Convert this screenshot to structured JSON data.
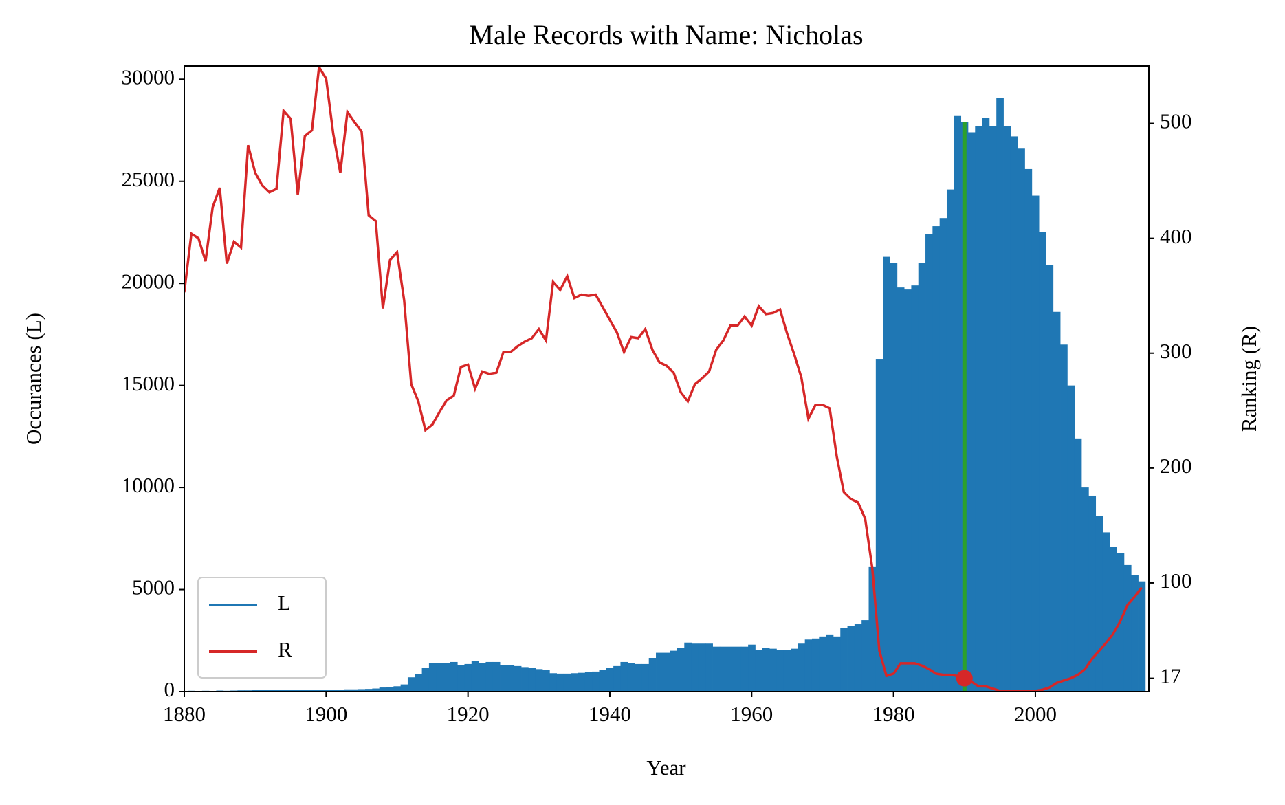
{
  "chart_data": {
    "type": "bar",
    "title": "Male Records with Name: Nicholas",
    "xlabel": "Year",
    "ylabel": "Occurances (L)",
    "y2label": "Ranking (R)",
    "x": [
      1880,
      1881,
      1882,
      1883,
      1884,
      1885,
      1886,
      1887,
      1888,
      1889,
      1890,
      1891,
      1892,
      1893,
      1894,
      1895,
      1896,
      1897,
      1898,
      1899,
      1900,
      1901,
      1902,
      1903,
      1904,
      1905,
      1906,
      1907,
      1908,
      1909,
      1910,
      1911,
      1912,
      1913,
      1914,
      1915,
      1916,
      1917,
      1918,
      1919,
      1920,
      1921,
      1922,
      1923,
      1924,
      1925,
      1926,
      1927,
      1928,
      1929,
      1930,
      1931,
      1932,
      1933,
      1934,
      1935,
      1936,
      1937,
      1938,
      1939,
      1940,
      1941,
      1942,
      1943,
      1944,
      1945,
      1946,
      1947,
      1948,
      1949,
      1950,
      1951,
      1952,
      1953,
      1954,
      1955,
      1956,
      1957,
      1958,
      1959,
      1960,
      1961,
      1962,
      1963,
      1964,
      1965,
      1966,
      1967,
      1968,
      1969,
      1970,
      1971,
      1972,
      1973,
      1974,
      1975,
      1976,
      1977,
      1978,
      1979,
      1980,
      1981,
      1982,
      1983,
      1984,
      1985,
      1986,
      1987,
      1988,
      1989,
      1990,
      1991,
      1992,
      1993,
      1994,
      1995,
      1996,
      1997,
      1998,
      1999,
      2000,
      2001,
      2002,
      2003,
      2004,
      2005,
      2006,
      2007,
      2008,
      2009,
      2010,
      2011,
      2012,
      2013,
      2014,
      2015
    ],
    "series": [
      {
        "name": "L",
        "type": "bar",
        "axis": "y",
        "color": "#1f77b4",
        "values": [
          30,
          40,
          30,
          40,
          30,
          50,
          40,
          50,
          60,
          60,
          70,
          70,
          80,
          80,
          70,
          80,
          80,
          80,
          90,
          90,
          100,
          100,
          100,
          110,
          110,
          120,
          130,
          150,
          200,
          230,
          260,
          350,
          700,
          850,
          1150,
          1400,
          1400,
          1400,
          1450,
          1300,
          1350,
          1500,
          1400,
          1450,
          1450,
          1300,
          1300,
          1250,
          1200,
          1150,
          1100,
          1050,
          900,
          880,
          880,
          900,
          920,
          950,
          980,
          1050,
          1150,
          1250,
          1450,
          1400,
          1350,
          1350,
          1650,
          1900,
          1900,
          2000,
          2150,
          2400,
          2350,
          2350,
          2350,
          2200,
          2200,
          2200,
          2200,
          2200,
          2300,
          2050,
          2150,
          2100,
          2050,
          2050,
          2100,
          2350,
          2550,
          2600,
          2700,
          2800,
          2700,
          3100,
          3200,
          3300,
          3500,
          6100,
          16300,
          21300,
          21000,
          19800,
          19700,
          19900,
          21000,
          22400,
          22800,
          23200,
          24600,
          28200,
          27900,
          27400,
          27700,
          28100,
          27700,
          29100,
          27700,
          27200,
          26600,
          25600,
          24300,
          22500,
          20900,
          18600,
          17000,
          15000,
          12400,
          10000,
          9600,
          8600,
          7800,
          7100,
          6800,
          6200,
          5700,
          5400
        ]
      },
      {
        "name": "R",
        "type": "line",
        "axis": "y2",
        "color": "#d62728",
        "values": [
          353,
          404,
          400,
          380,
          427,
          444,
          378,
          397,
          392,
          481,
          457,
          446,
          440,
          443,
          511,
          504,
          438,
          489,
          494,
          549,
          539,
          491,
          457,
          510,
          501,
          493,
          420,
          415,
          339,
          381,
          388,
          346,
          273,
          258,
          233,
          238,
          249,
          259,
          263,
          288,
          290,
          269,
          284,
          282,
          283,
          301,
          301,
          306,
          310,
          313,
          321,
          311,
          362,
          355,
          367,
          348,
          351,
          350,
          351,
          340,
          329,
          318,
          301,
          314,
          313,
          321,
          303,
          292,
          289,
          283,
          266,
          258,
          273,
          278,
          284,
          303,
          311,
          324,
          324,
          332,
          324,
          341,
          334,
          335,
          338,
          317,
          299,
          279,
          243,
          255,
          255,
          252,
          210,
          179,
          173,
          170,
          156,
          113,
          41,
          19,
          21,
          30,
          30,
          30,
          28,
          25,
          21,
          20,
          20,
          19,
          17,
          14,
          10,
          10,
          8,
          6,
          6,
          6,
          6,
          6,
          6,
          7,
          9,
          13,
          15,
          17,
          20,
          25,
          34,
          41,
          48,
          56,
          67,
          81,
          88,
          96
        ]
      }
    ],
    "highlight": {
      "x": 1990,
      "value": 27900,
      "rank": 17,
      "line_color": "#2ca02c",
      "point_color": "#d62728"
    },
    "xlim": [
      1880,
      2016
    ],
    "xticks": [
      1880,
      1900,
      1920,
      1940,
      1960,
      1980,
      2000
    ],
    "ylim": [
      0,
      30650
    ],
    "yticks": [
      0,
      5000,
      10000,
      15000,
      20000,
      25000,
      30000
    ],
    "y2lim": [
      5.4,
      550
    ],
    "y2ticks": [
      17,
      100,
      200,
      300,
      400,
      500
    ],
    "grid": false,
    "legend": "lower left"
  }
}
